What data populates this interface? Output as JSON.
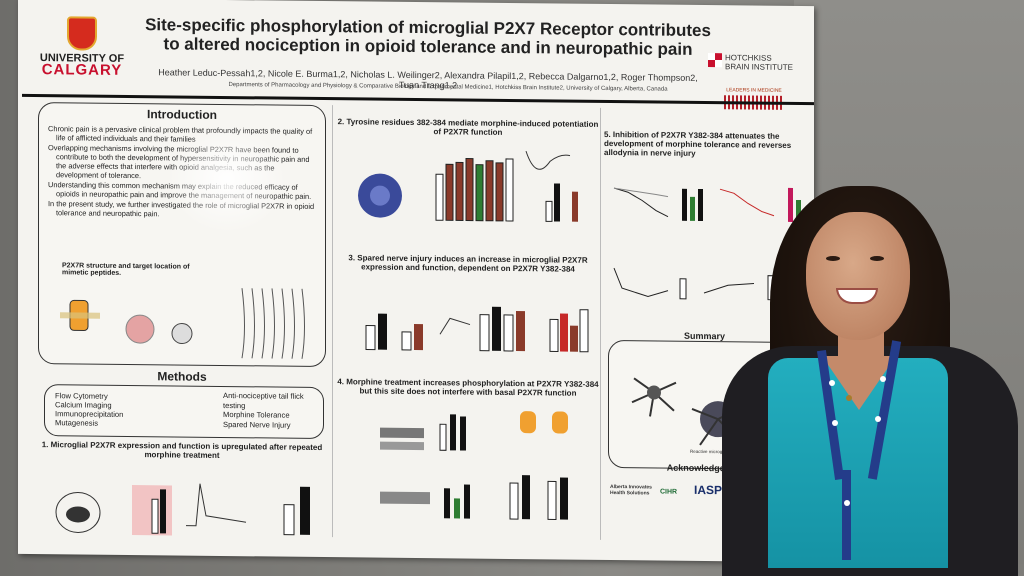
{
  "poster": {
    "university": {
      "line1": "UNIVERSITY OF",
      "line2": "CALGARY"
    },
    "title": "Site-specific phosphorylation of microglial P2X7 Receptor contributes to altered nociception in opioid tolerance and in neuropathic pain",
    "authors": "Heather Leduc-Pessah1,2, Nicole E. Burma1,2, Nicholas L. Weilinger2, Alexandra Pilapil1,2, Rebecca Dalgarno1,2, Roger Thompson2, Tuan Trang1,2",
    "departments": "Departments of Pharmacology and Physiology & Comparative Biology and Experimental Medicine1, Hotchkiss Brain Institute2, University of Calgary, Alberta, Canada",
    "institute": {
      "line1": "HOTCHKISS",
      "line2": "BRAIN INSTITUTE"
    },
    "leaders": "LEADERS IN MEDICINE",
    "introduction": {
      "heading": "Introduction",
      "bullets": [
        "Chronic pain is a pervasive clinical problem that profoundly impacts the quality of life of afflicted individuals and their families",
        "Overlapping mechanisms involving the microglial P2X7R have been found to contribute to both the development of hypersensitivity in neuropathic pain and the adverse effects that interfere with opioid analgesia, such as the development of tolerance.",
        "Understanding this common mechanism may explain the reduced efficacy of opioids in neuropathic pain and improve the management of neuropathic pain.",
        "In the present study, we further investigated the role of microglial P2X7R in opioid tolerance and neuropathic pain."
      ],
      "structure_label": "P2X7R structure and target location of mimetic peptides."
    },
    "methods": {
      "heading": "Methods",
      "left": [
        "Flow Cytometry",
        "Calcium Imaging",
        "Immunoprecipitation",
        "Mutagenesis"
      ],
      "right": [
        "Anti-nociceptive tail flick testing",
        "Morphine Tolerance",
        "Spared Nerve Injury"
      ]
    },
    "sections": {
      "s1": "1. Microglial P2X7R expression and function is upregulated after repeated morphine treatment",
      "s2": "2. Tyrosine residues 382-384 mediate morphine-induced potentiation of P2X7R function",
      "s3": "3. Spared nerve injury induces an increase in microglial P2X7R expression and function, dependent on P2X7R Y382-384",
      "s4": "4. Morphine treatment increases phosphorylation at P2X7R Y382-384 but this site does not interfere with basal P2X7R function",
      "s5": "5. Inhibition of P2X7R Y382-384 attenuates the development of morphine tolerance and reverses allodynia in nerve injury"
    },
    "summary": {
      "heading": "Summary",
      "caption": "Reactive microglia"
    },
    "acknowledgements": {
      "heading": "Acknowledgements",
      "sponsors": [
        "Alberta Innovates Health Solutions",
        "CIHR",
        "IASP"
      ]
    }
  }
}
